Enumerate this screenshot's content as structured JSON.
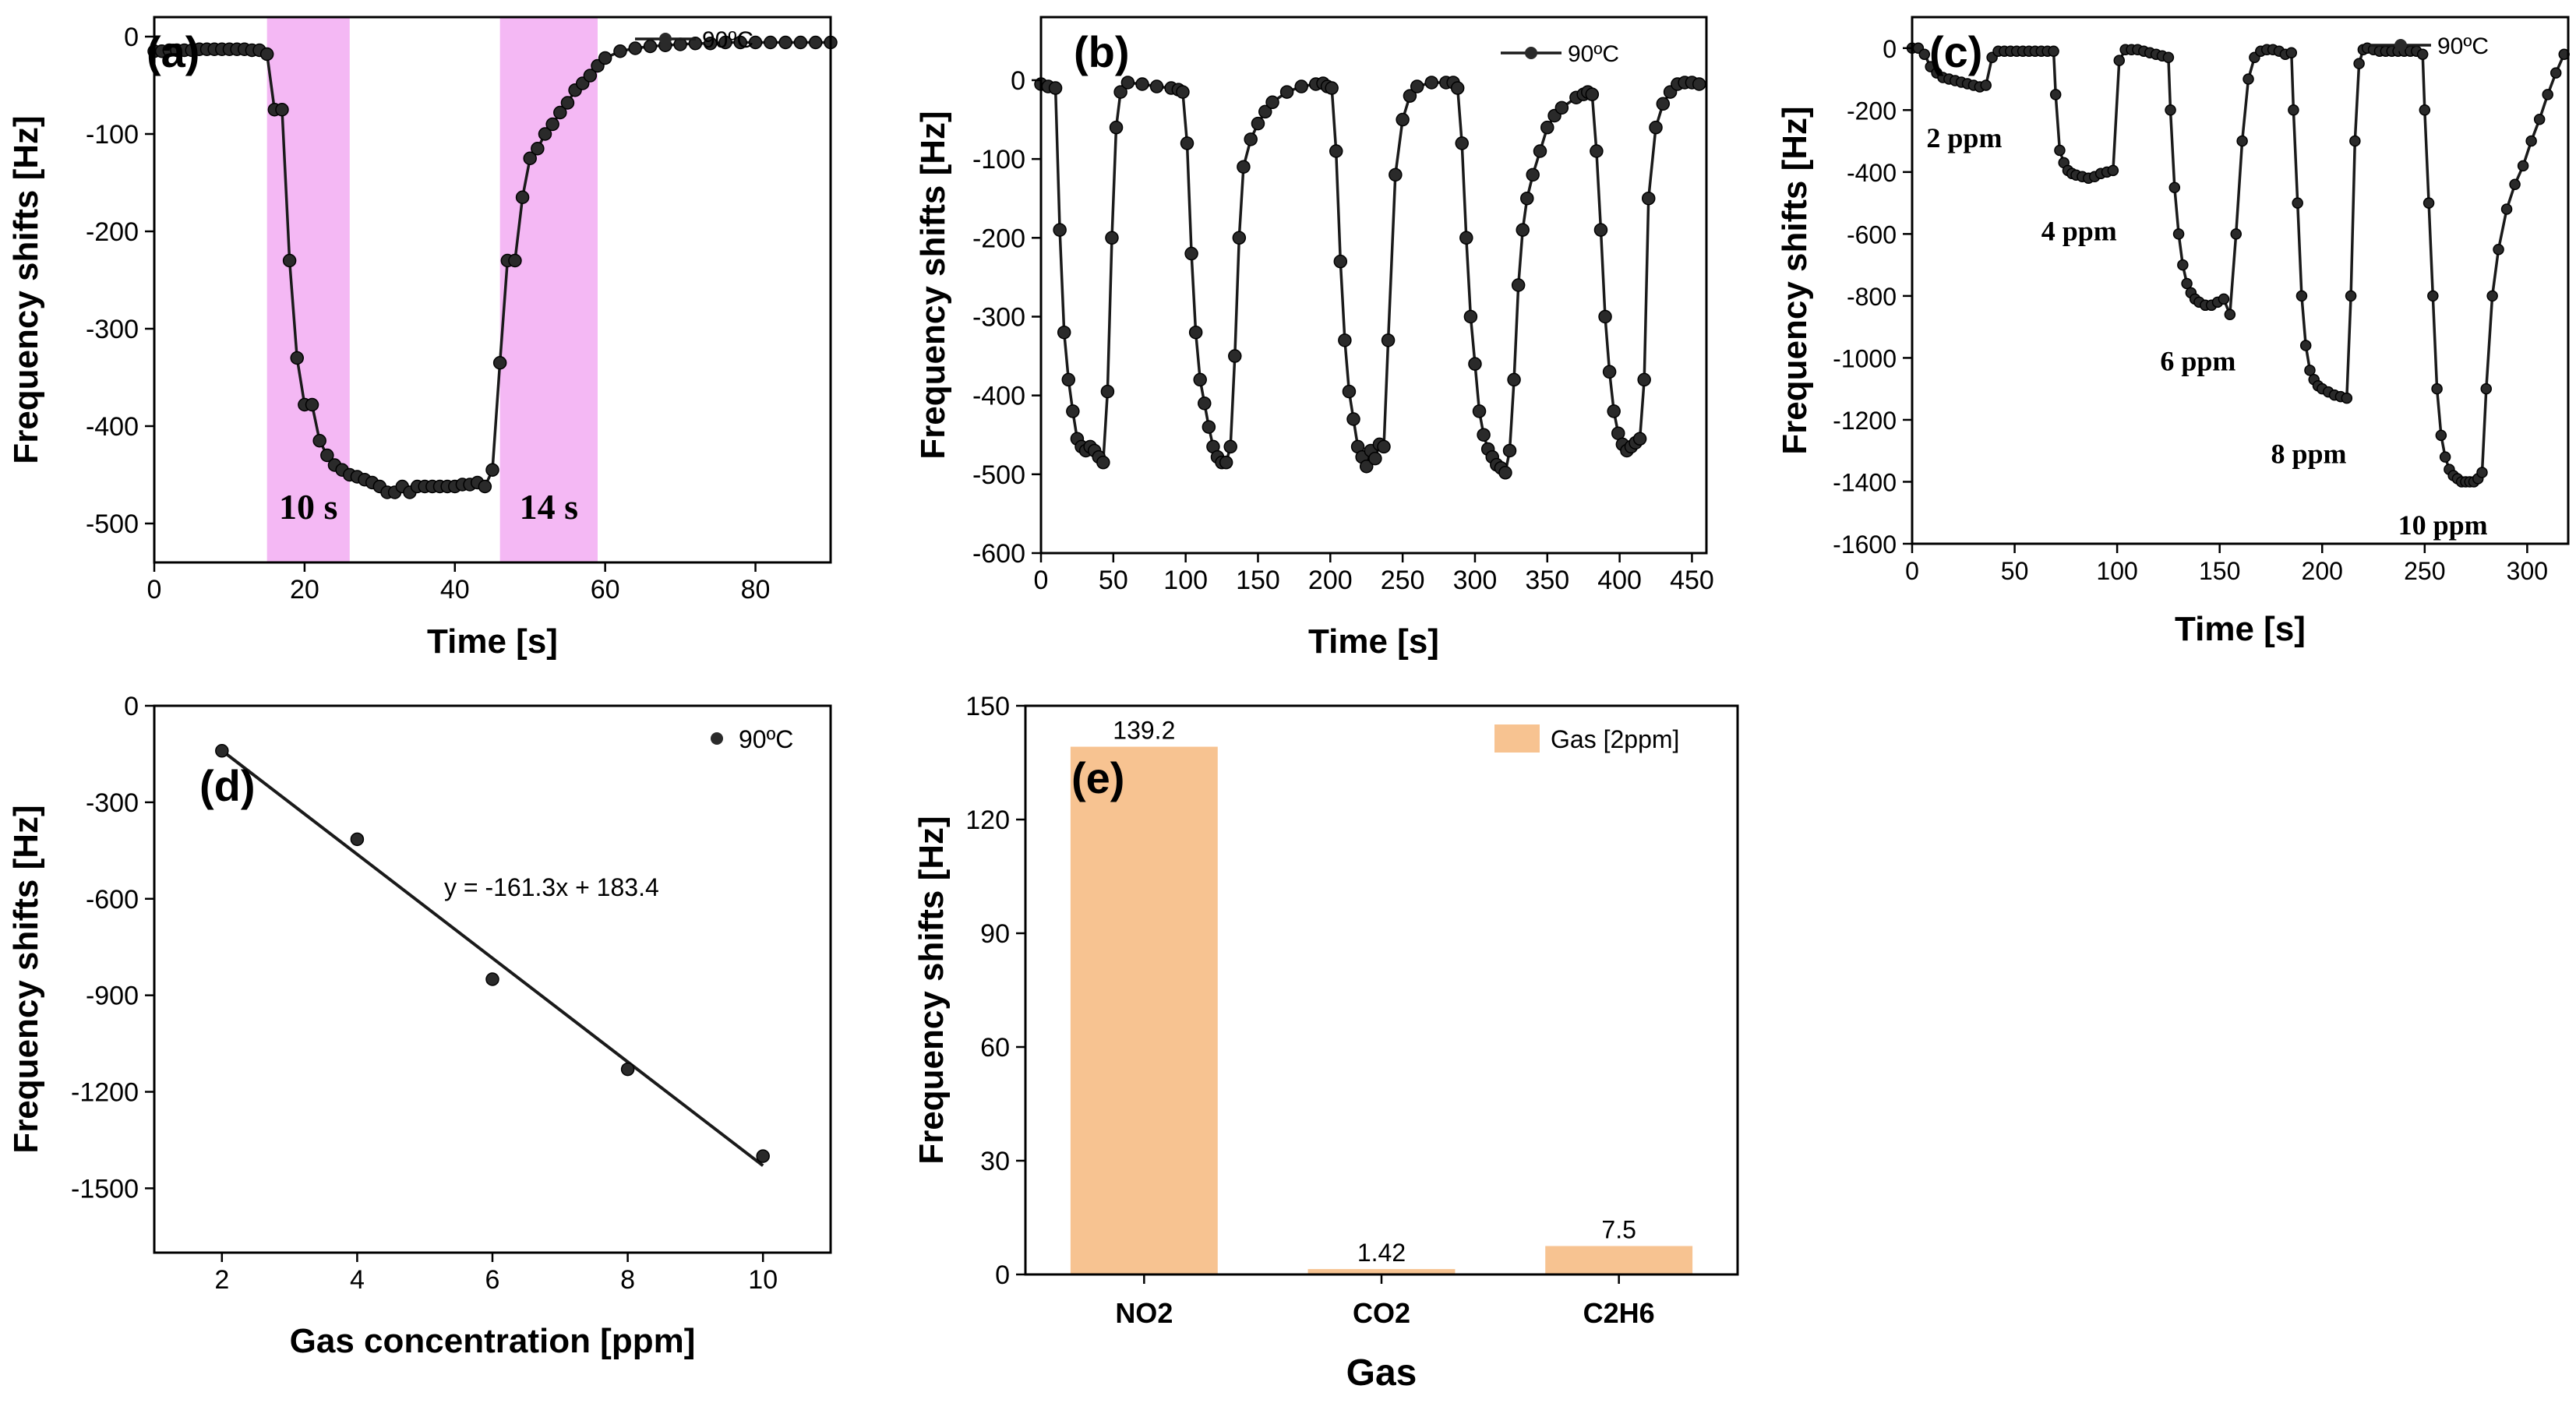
{
  "colors": {
    "line": "#1a1a1a",
    "marker_fill": "#2a2a2a",
    "highlight": "#f4b8f4",
    "bar": "#f7c391"
  },
  "chart_data": [
    {
      "id": "a",
      "type": "line",
      "panel_label": "(a)",
      "xlabel": "Time [s]",
      "ylabel": "Frequency shifts [Hz]",
      "xlim": [
        0,
        90
      ],
      "ylim": [
        -540,
        20
      ],
      "xticks": [
        0,
        20,
        40,
        60,
        80
      ],
      "yticks": [
        0,
        -100,
        -200,
        -300,
        -400,
        -500
      ],
      "legend": {
        "label": "90ºC",
        "position": "top-right"
      },
      "highlights": [
        {
          "x0": 15,
          "x1": 26,
          "label": "10 s"
        },
        {
          "x0": 46,
          "x1": 59,
          "label": "14 s"
        }
      ],
      "series": [
        {
          "x": [
            0,
            1,
            2,
            3,
            4,
            5,
            6,
            7,
            8,
            9,
            10,
            11,
            12,
            13,
            14,
            15,
            16,
            17,
            18,
            19,
            20,
            21,
            22,
            23,
            24,
            25,
            26,
            27,
            28,
            29,
            30,
            31,
            32,
            33,
            34,
            35,
            36,
            37,
            38,
            39,
            40,
            41,
            42,
            43,
            44,
            45,
            46,
            47,
            48,
            49,
            50,
            51,
            52,
            53,
            54,
            55,
            56,
            57,
            58,
            59,
            60,
            62,
            64,
            66,
            68,
            70,
            72,
            74,
            76,
            78,
            80,
            82,
            84,
            86,
            88,
            90
          ],
          "y": [
            -15,
            -15,
            -14,
            -14,
            -14,
            -14,
            -13,
            -13,
            -13,
            -13,
            -13,
            -13,
            -13,
            -14,
            -14,
            -18,
            -75,
            -75,
            -230,
            -330,
            -378,
            -378,
            -415,
            -430,
            -440,
            -445,
            -450,
            -452,
            -455,
            -458,
            -462,
            -468,
            -468,
            -462,
            -468,
            -462,
            -462,
            -462,
            -462,
            -462,
            -462,
            -460,
            -460,
            -458,
            -462,
            -445,
            -335,
            -230,
            -230,
            -165,
            -125,
            -115,
            -100,
            -90,
            -78,
            -68,
            -55,
            -48,
            -40,
            -30,
            -22,
            -15,
            -12,
            -10,
            -9,
            -8,
            -7,
            -7,
            -6,
            -6,
            -6,
            -6,
            -6,
            -6,
            -6,
            -6
          ]
        }
      ]
    },
    {
      "id": "b",
      "type": "line",
      "panel_label": "(b)",
      "xlabel": "Time [s]",
      "ylabel": "Frequency shifts [Hz]",
      "xlim": [
        0,
        460
      ],
      "ylim": [
        -600,
        80
      ],
      "xticks": [
        0,
        50,
        100,
        150,
        200,
        250,
        300,
        350,
        400,
        450
      ],
      "yticks": [
        0,
        -100,
        -200,
        -300,
        -400,
        -500,
        -600
      ],
      "legend": {
        "label": "90ºC",
        "position": "top-right"
      },
      "series": [
        {
          "x": [
            0,
            5,
            10,
            13,
            16,
            19,
            22,
            25,
            28,
            31,
            34,
            37,
            40,
            43,
            46,
            49,
            52,
            55,
            60,
            70,
            80,
            90,
            95,
            98,
            101,
            104,
            107,
            110,
            113,
            116,
            119,
            122,
            125,
            128,
            131,
            134,
            137,
            140,
            145,
            150,
            155,
            160,
            170,
            180,
            190,
            195,
            198,
            201,
            204,
            207,
            210,
            213,
            216,
            219,
            222,
            225,
            228,
            231,
            234,
            237,
            240,
            245,
            250,
            255,
            260,
            270,
            280,
            285,
            288,
            291,
            294,
            297,
            300,
            303,
            306,
            309,
            312,
            315,
            318,
            321,
            324,
            327,
            330,
            333,
            336,
            340,
            345,
            350,
            355,
            360,
            370,
            375,
            378,
            381,
            384,
            387,
            390,
            393,
            396,
            399,
            402,
            405,
            408,
            411,
            414,
            417,
            420,
            425,
            430,
            435,
            440,
            445,
            450,
            455
          ],
          "y": [
            -5,
            -8,
            -10,
            -190,
            -320,
            -380,
            -420,
            -455,
            -465,
            -470,
            -465,
            -470,
            -478,
            -485,
            -395,
            -200,
            -60,
            -15,
            -3,
            -5,
            -8,
            -10,
            -12,
            -15,
            -80,
            -220,
            -320,
            -380,
            -410,
            -440,
            -465,
            -478,
            -485,
            -485,
            -465,
            -350,
            -200,
            -110,
            -75,
            -55,
            -40,
            -28,
            -15,
            -8,
            -5,
            -4,
            -8,
            -10,
            -90,
            -230,
            -330,
            -395,
            -430,
            -465,
            -478,
            -490,
            -470,
            -480,
            -462,
            -465,
            -330,
            -120,
            -50,
            -20,
            -8,
            -3,
            -3,
            -3,
            -10,
            -80,
            -200,
            -300,
            -360,
            -420,
            -450,
            -468,
            -478,
            -488,
            -492,
            -498,
            -470,
            -380,
            -260,
            -190,
            -150,
            -120,
            -90,
            -60,
            -45,
            -35,
            -22,
            -18,
            -15,
            -18,
            -90,
            -190,
            -300,
            -370,
            -420,
            -448,
            -462,
            -470,
            -465,
            -460,
            -455,
            -380,
            -150,
            -60,
            -30,
            -15,
            -5,
            -3,
            -3,
            -5
          ]
        }
      ]
    },
    {
      "id": "c",
      "type": "line",
      "panel_label": "(c)",
      "xlabel": "Time [s]",
      "ylabel": "Frequency shifts [Hz]",
      "xlim": [
        0,
        320
      ],
      "ylim": [
        -1600,
        100
      ],
      "xticks": [
        0,
        50,
        100,
        150,
        200,
        250,
        300
      ],
      "yticks": [
        0,
        -200,
        -400,
        -600,
        -800,
        -1000,
        -1200,
        -1400,
        -1600
      ],
      "legend": {
        "label": "90ºC",
        "position": "top-right"
      },
      "annotations": [
        {
          "x": 7,
          "y": -320,
          "text": "2 ppm"
        },
        {
          "x": 63,
          "y": -620,
          "text": "4 ppm"
        },
        {
          "x": 121,
          "y": -1040,
          "text": "6 ppm"
        },
        {
          "x": 175,
          "y": -1340,
          "text": "8 ppm"
        },
        {
          "x": 237,
          "y": -1570,
          "text": "10 ppm"
        }
      ],
      "series": [
        {
          "x": [
            0,
            3,
            6,
            9,
            12,
            15,
            18,
            21,
            24,
            27,
            30,
            33,
            36,
            39,
            42,
            45,
            48,
            51,
            54,
            57,
            60,
            63,
            66,
            69,
            70,
            72,
            74,
            76,
            78,
            80,
            83,
            86,
            89,
            92,
            95,
            98,
            101,
            104,
            107,
            110,
            113,
            116,
            119,
            122,
            125,
            126,
            128,
            130,
            132,
            134,
            136,
            138,
            140,
            143,
            146,
            149,
            152,
            155,
            158,
            161,
            164,
            167,
            170,
            173,
            176,
            179,
            182,
            185,
            186,
            188,
            190,
            192,
            194,
            196,
            198,
            200,
            203,
            206,
            209,
            212,
            214,
            216,
            218,
            220,
            222,
            225,
            228,
            231,
            234,
            237,
            240,
            243,
            246,
            249,
            250,
            252,
            254,
            256,
            258,
            260,
            262,
            264,
            266,
            268,
            270,
            272,
            274,
            276,
            278,
            280,
            283,
            286,
            290,
            294,
            298,
            302,
            306,
            310,
            314,
            318
          ],
          "y": [
            0,
            0,
            -20,
            -60,
            -80,
            -95,
            -100,
            -105,
            -110,
            -115,
            -120,
            -125,
            -120,
            -30,
            -10,
            -10,
            -10,
            -10,
            -10,
            -10,
            -10,
            -10,
            -10,
            -10,
            -150,
            -330,
            -370,
            -395,
            -405,
            -410,
            -415,
            -420,
            -415,
            -405,
            -400,
            -395,
            -40,
            -5,
            -5,
            -5,
            -10,
            -15,
            -20,
            -25,
            -30,
            -200,
            -450,
            -600,
            -700,
            -760,
            -790,
            -810,
            -820,
            -830,
            -830,
            -820,
            -810,
            -860,
            -600,
            -300,
            -100,
            -30,
            -10,
            -5,
            -5,
            -10,
            -20,
            -15,
            -200,
            -500,
            -800,
            -960,
            -1040,
            -1070,
            -1090,
            -1100,
            -1110,
            -1120,
            -1125,
            -1130,
            -800,
            -300,
            -50,
            -5,
            0,
            -5,
            -10,
            -10,
            -10,
            -10,
            -10,
            -10,
            -10,
            -20,
            -200,
            -500,
            -800,
            -1100,
            -1250,
            -1320,
            -1360,
            -1380,
            -1390,
            -1400,
            -1400,
            -1400,
            -1400,
            -1390,
            -1370,
            -1100,
            -800,
            -650,
            -520,
            -440,
            -380,
            -300,
            -230,
            -150,
            -80,
            -20
          ]
        }
      ]
    },
    {
      "id": "d",
      "type": "scatter",
      "panel_label": "(d)",
      "xlabel": "Gas concentration [ppm]",
      "ylabel": "Frequency shifts [Hz]",
      "xlim": [
        1,
        11
      ],
      "ylim": [
        -1700,
        0
      ],
      "xticks": [
        2,
        4,
        6,
        8,
        10
      ],
      "yticks": [
        0,
        -300,
        -600,
        -900,
        -1200,
        -1500
      ],
      "legend": {
        "label": "90ºC",
        "position": "top-right"
      },
      "fit_label": "y = -161.3x + 183.4",
      "fit": {
        "slope": -161.3,
        "intercept": 183.4,
        "x_range": [
          2,
          10
        ]
      },
      "series": [
        {
          "x": [
            2,
            4,
            6,
            8,
            10
          ],
          "y": [
            -140,
            -415,
            -850,
            -1130,
            -1400
          ]
        }
      ]
    },
    {
      "id": "e",
      "type": "bar",
      "panel_label": "(e)",
      "xlabel": "Gas",
      "ylabel": "Frequency shifts [Hz]",
      "ylim": [
        0,
        150
      ],
      "yticks": [
        0,
        30,
        60,
        90,
        120,
        150
      ],
      "legend": {
        "label": "Gas [2ppm]",
        "position": "top-right"
      },
      "categories": [
        "NO2",
        "CO2",
        "C2H6"
      ],
      "values": [
        139.2,
        1.42,
        7.5
      ],
      "value_labels": [
        "139.2",
        "1.42",
        "7.5"
      ]
    }
  ]
}
